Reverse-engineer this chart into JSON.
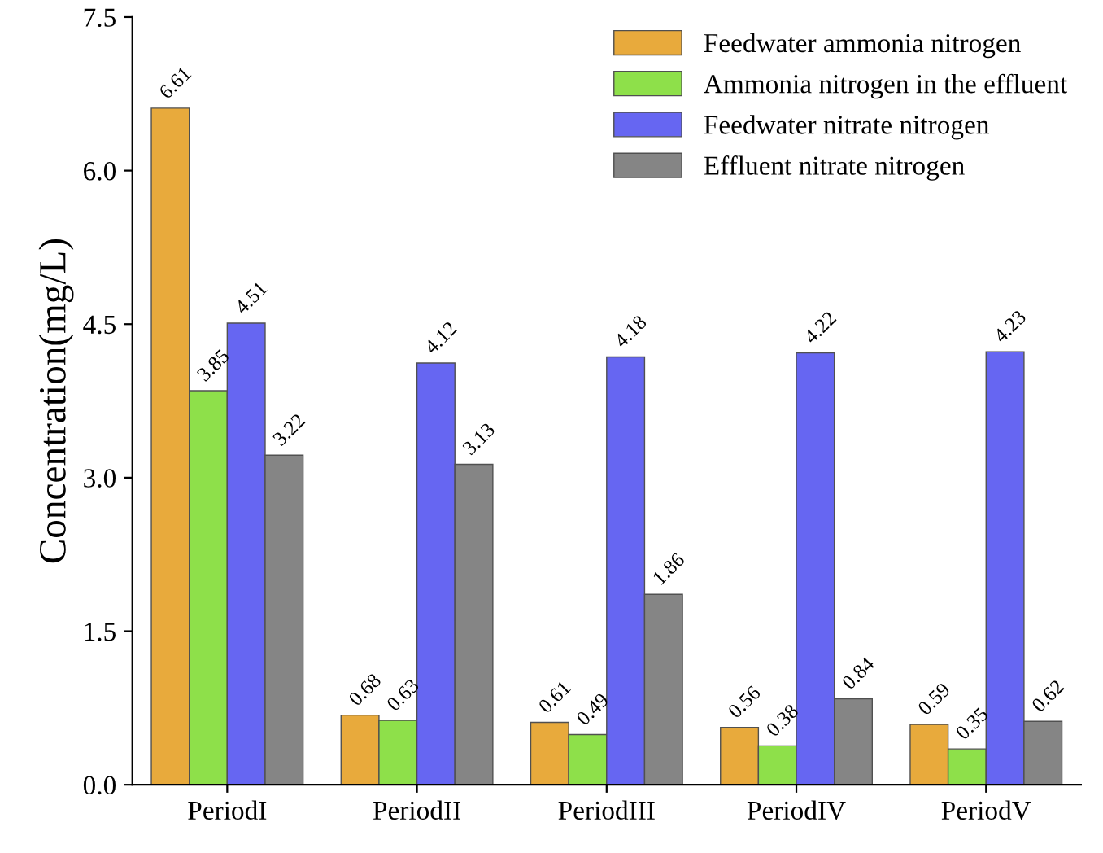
{
  "chart_data": {
    "type": "bar",
    "ylabel": "Concentration(mg/L)",
    "categories": [
      "PeriodI",
      "PeriodII",
      "PeriodIII",
      "PeriodIV",
      "PeriodV"
    ],
    "series": [
      {
        "name": "Feedwater ammonia nitrogen",
        "color": "#e8aa3c",
        "values": [
          6.61,
          0.68,
          0.61,
          0.56,
          0.59
        ]
      },
      {
        "name": "Ammonia nitrogen in the effluent",
        "color": "#8ee04a",
        "values": [
          3.85,
          0.63,
          0.49,
          0.38,
          0.35
        ]
      },
      {
        "name": "Feedwater nitrate nitrogen",
        "color": "#6666f2",
        "values": [
          4.51,
          4.12,
          4.18,
          4.22,
          4.23
        ]
      },
      {
        "name": "Effluent nitrate nitrogen",
        "color": "#858585",
        "values": [
          3.22,
          3.13,
          1.86,
          0.84,
          0.62
        ]
      }
    ],
    "ylim": [
      0,
      7.5
    ],
    "yticks": [
      {
        "value": 0,
        "label": "0.0"
      },
      {
        "value": 1.5,
        "label": "1.5"
      },
      {
        "value": 3,
        "label": "3.0"
      },
      {
        "value": 4.5,
        "label": "4.5"
      },
      {
        "value": 6,
        "label": "6.0"
      },
      {
        "value": 7.5,
        "label": "7.5"
      }
    ],
    "data_labels": true,
    "legend": "top right",
    "grid": false
  }
}
